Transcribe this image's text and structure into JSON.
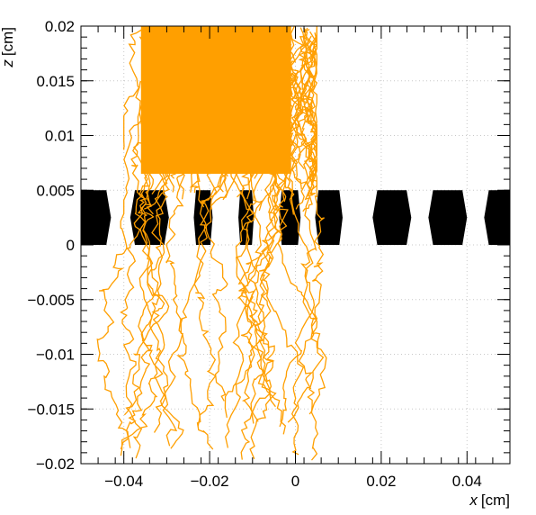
{
  "chart_data": {
    "type": "line",
    "title": "",
    "xlabel_var": "x",
    "xlabel_unit": "[cm]",
    "ylabel_var": "z",
    "ylabel_unit": "[cm]",
    "xlim": [
      -0.05,
      0.05
    ],
    "ylim": [
      -0.02,
      0.02
    ],
    "x_ticks": [
      -0.04,
      -0.02,
      0,
      0.02,
      0.04
    ],
    "x_tick_labels": [
      "−0.04",
      "−0.02",
      "0",
      "0.02",
      "0.04"
    ],
    "y_ticks": [
      -0.02,
      -0.015,
      -0.01,
      -0.005,
      0,
      0.005,
      0.01,
      0.015,
      0.02
    ],
    "y_tick_labels": [
      "−0.02",
      "−0.015",
      "−0.01",
      "−0.005",
      "0",
      "0.005",
      "0.01",
      "0.015",
      "0.02"
    ],
    "grid": true,
    "track_color": "#ff9f00",
    "electrode_color": "#000000",
    "electrodes": {
      "z_range": [
        0,
        0.005
      ],
      "centers": [
        -0.0475,
        -0.034,
        -0.0215,
        -0.0115,
        -0.0013,
        0.0078,
        0.0225,
        0.0355,
        0.0485
      ],
      "half_widths": [
        0.0045,
        0.0045,
        0.0022,
        0.0018,
        0.0025,
        0.0032,
        0.0045,
        0.0045,
        0.0045
      ]
    },
    "tracks": {
      "dense_x_range": [
        -0.04,
        0.005
      ],
      "dense_z_range": [
        0.003,
        0.02
      ],
      "spread_x_range": [
        -0.037,
        0.009
      ],
      "count": 70
    }
  }
}
